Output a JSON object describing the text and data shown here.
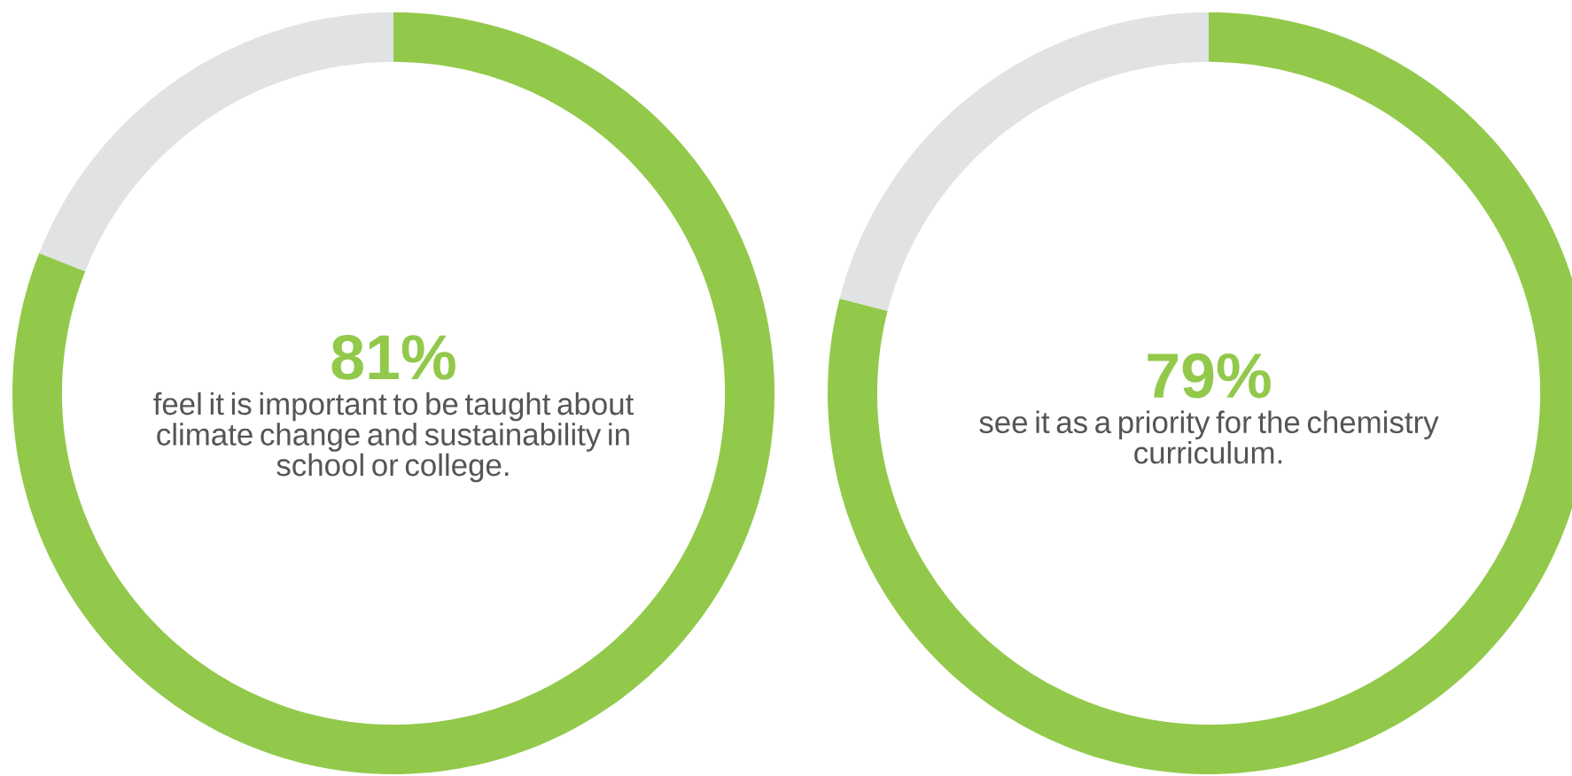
{
  "chart_data": [
    {
      "type": "donut",
      "categories": [
        null,
        null
      ],
      "values": [
        81,
        19
      ],
      "colors": [
        "#92c94b",
        "#e1e2e4"
      ],
      "value_labels": [
        "81%",
        null
      ],
      "annotations": [
        "feel it is important to be taught about climate change and sustainability in school or college."
      ]
    },
    {
      "type": "donut",
      "categories": [
        null,
        null
      ],
      "values": [
        79,
        21
      ],
      "colors": [
        "#92c94b",
        "#e1e2e4"
      ],
      "value_labels": [
        "79%",
        null
      ],
      "annotations": [
        "see it as a priority for the chemistry curriculum."
      ]
    }
  ]
}
